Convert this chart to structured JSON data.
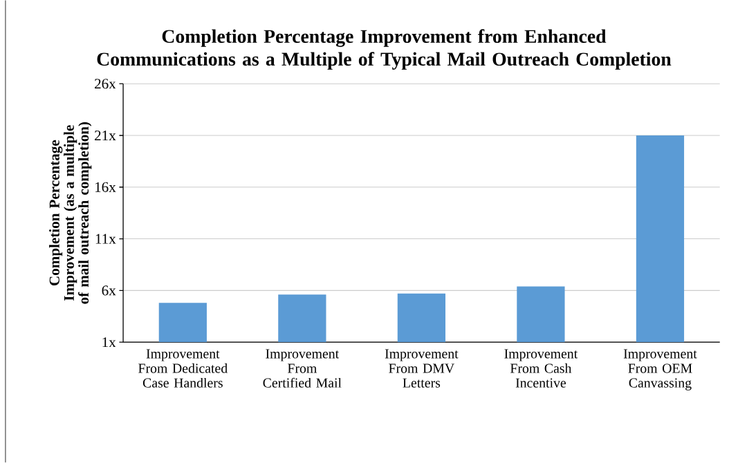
{
  "chart_data": {
    "type": "bar",
    "title": "Completion Percentage Improvement from Enhanced Communications as a Multiple of Typical Mail Outreach Completion",
    "ylabel": "Completion Percentage Improvement (as a multiple of mail outreach completion)",
    "categories": [
      "Improvement From Dedicated Case Handlers",
      "Improvement From Certified Mail",
      "Improvement From DMV Letters",
      "Improvement From Cash Incentive",
      "Improvement From OEM Canvassing"
    ],
    "values": [
      4.8,
      5.6,
      5.7,
      6.4,
      21
    ],
    "color": "#5b9bd5",
    "ylim": [
      1,
      26
    ],
    "yticks": [
      {
        "value": 1,
        "label": "1x"
      },
      {
        "value": 6,
        "label": "6x"
      },
      {
        "value": 11,
        "label": "11x"
      },
      {
        "value": 16,
        "label": "16x"
      },
      {
        "value": 21,
        "label": "21x"
      },
      {
        "value": 26,
        "label": "26x"
      }
    ],
    "grid": "y"
  }
}
